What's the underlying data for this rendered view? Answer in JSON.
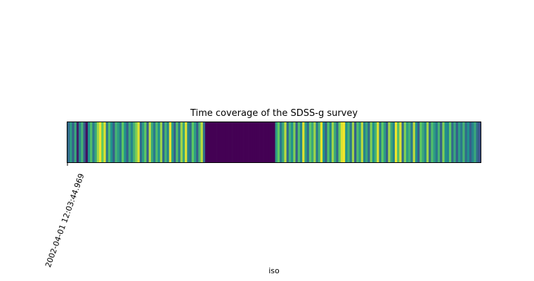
{
  "chart_data": {
    "type": "heatmap",
    "title": "Time coverage of the SDSS-g survey",
    "xlabel": "iso",
    "ylabel": "",
    "x_tick_labels": [
      "2002-04-01 12:03:44.969"
    ],
    "colormap": "viridis",
    "value_range": [
      0,
      1
    ],
    "grid": false,
    "legend": "none",
    "values": [
      0.35,
      0.55,
      0.3,
      0.6,
      0.1,
      0.45,
      0.65,
      0.3,
      0.05,
      0.5,
      0.7,
      0.4,
      0.6,
      0.85,
      0.98,
      0.75,
      0.95,
      0.4,
      0.7,
      0.5,
      0.3,
      0.65,
      0.55,
      0.4,
      0.75,
      0.5,
      0.3,
      0.6,
      0.45,
      0.65,
      0.8,
      0.95,
      0.35,
      0.55,
      0.75,
      0.3,
      0.9,
      0.6,
      0.4,
      0.7,
      0.5,
      0.85,
      0.35,
      0.65,
      0.45,
      0.98,
      0.55,
      0.3,
      0.7,
      0.4,
      0.85,
      0.6,
      0.95,
      0.45,
      0.35,
      0.75,
      0.55,
      0.3,
      0.65,
      0.9,
      0.35,
      0.0,
      0.0,
      0.0,
      0.0,
      0.0,
      0.0,
      0.0,
      0.0,
      0.0,
      0.0,
      0.0,
      0.0,
      0.0,
      0.0,
      0.0,
      0.0,
      0.0,
      0.0,
      0.0,
      0.0,
      0.0,
      0.0,
      0.0,
      0.0,
      0.0,
      0.0,
      0.0,
      0.0,
      0.0,
      0.0,
      0.0,
      0.55,
      0.75,
      0.4,
      0.6,
      0.9,
      0.35,
      0.65,
      0.5,
      0.8,
      0.3,
      0.7,
      0.45,
      0.95,
      0.55,
      0.35,
      0.75,
      0.6,
      0.85,
      0.4,
      0.65,
      0.98,
      0.5,
      0.3,
      0.7,
      0.45,
      0.85,
      0.6,
      0.35,
      0.75,
      0.95,
      0.98,
      0.5,
      0.65,
      0.4,
      0.85,
      0.3,
      0.7,
      0.55,
      0.9,
      0.45,
      0.6,
      0.35,
      0.8,
      0.5,
      0.65,
      0.95,
      0.4,
      0.75,
      0.55,
      0.3,
      0.85,
      0.6,
      0.45,
      0.98,
      0.7,
      0.95,
      0.35,
      0.8,
      0.55,
      0.65,
      0.4,
      0.9,
      0.5,
      0.3,
      0.75,
      0.6,
      0.45,
      0.85,
      0.35,
      0.7,
      0.55,
      0.4,
      0.65,
      0.3,
      0.8,
      0.5,
      0.45,
      0.75,
      0.35,
      0.6,
      0.3,
      0.55,
      0.4,
      0.65,
      0.35,
      0.5,
      0.3,
      0.45,
      0.6,
      0.35,
      0.25
    ]
  }
}
